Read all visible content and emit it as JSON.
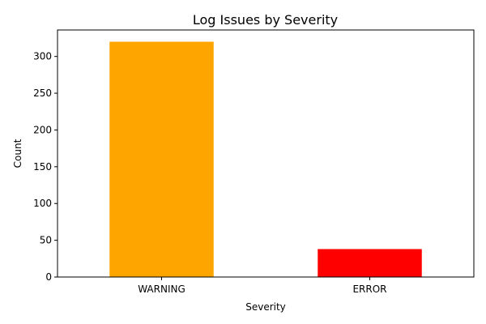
{
  "chart_data": {
    "type": "bar",
    "title": "Log Issues by Severity",
    "xlabel": "Severity",
    "ylabel": "Count",
    "categories": [
      "WARNING",
      "ERROR"
    ],
    "values": [
      320,
      38
    ],
    "colors": [
      "#FFA500",
      "#FF0000"
    ],
    "ylim": [
      0,
      336
    ],
    "yticks": [
      0,
      50,
      100,
      150,
      200,
      250,
      300
    ],
    "grid": false,
    "legend": "none"
  }
}
